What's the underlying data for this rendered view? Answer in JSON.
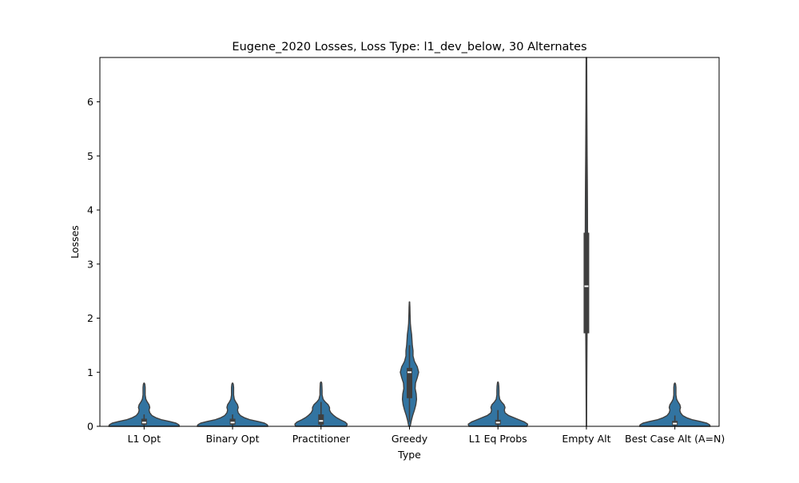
{
  "chart_data": {
    "type": "violin",
    "title": "Eugene_2020 Losses, Loss Type: l1_dev_below, 30 Alternates",
    "xlabel": "Type",
    "ylabel": "Losses",
    "ylim": [
      0,
      6.82
    ],
    "yticks": [
      0,
      1,
      2,
      3,
      4,
      5,
      6
    ],
    "grid": false,
    "violin_color": "#3274a1",
    "edge_color": "#3f3f3f",
    "categories": [
      "L1 Opt",
      "Binary Opt",
      "Practitioner",
      "Greedy",
      "L1 Eq Probs",
      "Empty Alt",
      "Best Case Alt (A=N)"
    ],
    "violins": [
      {
        "category": "L1 Opt",
        "profile": [
          [
            0,
            1.0
          ],
          [
            0.03,
            0.98
          ],
          [
            0.06,
            0.9
          ],
          [
            0.09,
            0.72
          ],
          [
            0.12,
            0.5
          ],
          [
            0.16,
            0.33
          ],
          [
            0.2,
            0.22
          ],
          [
            0.25,
            0.16
          ],
          [
            0.3,
            0.14
          ],
          [
            0.35,
            0.16
          ],
          [
            0.4,
            0.14
          ],
          [
            0.45,
            0.09
          ],
          [
            0.5,
            0.05
          ],
          [
            0.58,
            0.03
          ],
          [
            0.65,
            0.03
          ],
          [
            0.72,
            0.03
          ],
          [
            0.78,
            0.02
          ],
          [
            0.8,
            0.005
          ]
        ],
        "q1": 0.03,
        "median": 0.07,
        "q3": 0.14,
        "whisker_low": 0.0,
        "whisker_high": 0.22
      },
      {
        "category": "Binary Opt",
        "profile": [
          [
            0,
            1.0
          ],
          [
            0.03,
            0.98
          ],
          [
            0.06,
            0.9
          ],
          [
            0.09,
            0.72
          ],
          [
            0.12,
            0.5
          ],
          [
            0.16,
            0.33
          ],
          [
            0.2,
            0.22
          ],
          [
            0.25,
            0.16
          ],
          [
            0.3,
            0.14
          ],
          [
            0.35,
            0.16
          ],
          [
            0.4,
            0.14
          ],
          [
            0.45,
            0.09
          ],
          [
            0.5,
            0.05
          ],
          [
            0.58,
            0.03
          ],
          [
            0.65,
            0.03
          ],
          [
            0.72,
            0.03
          ],
          [
            0.78,
            0.02
          ],
          [
            0.8,
            0.005
          ]
        ],
        "q1": 0.03,
        "median": 0.07,
        "q3": 0.14,
        "whisker_low": 0.0,
        "whisker_high": 0.22
      },
      {
        "category": "Practitioner",
        "profile": [
          [
            0,
            0.72
          ],
          [
            0.04,
            0.74
          ],
          [
            0.08,
            0.68
          ],
          [
            0.12,
            0.55
          ],
          [
            0.16,
            0.44
          ],
          [
            0.2,
            0.36
          ],
          [
            0.25,
            0.28
          ],
          [
            0.3,
            0.24
          ],
          [
            0.35,
            0.24
          ],
          [
            0.4,
            0.2
          ],
          [
            0.45,
            0.12
          ],
          [
            0.5,
            0.06
          ],
          [
            0.58,
            0.03
          ],
          [
            0.66,
            0.03
          ],
          [
            0.74,
            0.025
          ],
          [
            0.8,
            0.02
          ],
          [
            0.82,
            0.005
          ]
        ],
        "q1": 0.03,
        "median": 0.1,
        "q3": 0.22,
        "whisker_low": 0.0,
        "whisker_high": 0.45
      },
      {
        "category": "Greedy",
        "profile": [
          [
            0,
            0.02
          ],
          [
            0.1,
            0.05
          ],
          [
            0.2,
            0.09
          ],
          [
            0.3,
            0.14
          ],
          [
            0.4,
            0.18
          ],
          [
            0.5,
            0.2
          ],
          [
            0.6,
            0.19
          ],
          [
            0.7,
            0.16
          ],
          [
            0.8,
            0.17
          ],
          [
            0.9,
            0.22
          ],
          [
            1.0,
            0.26
          ],
          [
            1.1,
            0.22
          ],
          [
            1.2,
            0.14
          ],
          [
            1.3,
            0.1
          ],
          [
            1.4,
            0.1
          ],
          [
            1.5,
            0.08
          ],
          [
            1.6,
            0.07
          ],
          [
            1.7,
            0.06
          ],
          [
            1.8,
            0.04
          ],
          [
            1.9,
            0.025
          ],
          [
            2.0,
            0.02
          ],
          [
            2.1,
            0.015
          ],
          [
            2.2,
            0.012
          ],
          [
            2.3,
            0.005
          ]
        ],
        "q1": 0.52,
        "median": 1.0,
        "q3": 1.08,
        "whisker_low": 0.08,
        "whisker_high": 1.5
      },
      {
        "category": "L1 Eq Probs",
        "profile": [
          [
            0,
            0.82
          ],
          [
            0.04,
            0.84
          ],
          [
            0.08,
            0.75
          ],
          [
            0.12,
            0.6
          ],
          [
            0.16,
            0.45
          ],
          [
            0.2,
            0.3
          ],
          [
            0.25,
            0.2
          ],
          [
            0.3,
            0.18
          ],
          [
            0.35,
            0.2
          ],
          [
            0.4,
            0.17
          ],
          [
            0.45,
            0.1
          ],
          [
            0.5,
            0.05
          ],
          [
            0.58,
            0.03
          ],
          [
            0.66,
            0.03
          ],
          [
            0.74,
            0.025
          ],
          [
            0.8,
            0.015
          ],
          [
            0.82,
            0.005
          ]
        ],
        "q1": 0.03,
        "median": 0.07,
        "q3": 0.12,
        "whisker_low": 0.0,
        "whisker_high": 0.3
      },
      {
        "category": "Empty Alt",
        "profile": [
          [
            0,
            0.004
          ],
          [
            0.5,
            0.008
          ],
          [
            1.0,
            0.012
          ],
          [
            1.5,
            0.016
          ],
          [
            2.0,
            0.022
          ],
          [
            2.5,
            0.028
          ],
          [
            3.0,
            0.03
          ],
          [
            3.5,
            0.032
          ],
          [
            4.0,
            0.03
          ],
          [
            4.5,
            0.026
          ],
          [
            5.0,
            0.02
          ],
          [
            5.5,
            0.016
          ],
          [
            6.0,
            0.012
          ],
          [
            6.5,
            0.01
          ],
          [
            6.82,
            0.008
          ]
        ],
        "q1": 1.72,
        "median": 2.59,
        "q3": 3.58,
        "whisker_low": 0.0,
        "whisker_high": 6.82
      },
      {
        "category": "Best Case Alt (A=N)",
        "profile": [
          [
            0,
            1.0
          ],
          [
            0.03,
            0.98
          ],
          [
            0.06,
            0.9
          ],
          [
            0.09,
            0.72
          ],
          [
            0.12,
            0.5
          ],
          [
            0.16,
            0.33
          ],
          [
            0.2,
            0.22
          ],
          [
            0.25,
            0.16
          ],
          [
            0.3,
            0.14
          ],
          [
            0.35,
            0.16
          ],
          [
            0.4,
            0.14
          ],
          [
            0.45,
            0.09
          ],
          [
            0.5,
            0.05
          ],
          [
            0.58,
            0.03
          ],
          [
            0.65,
            0.03
          ],
          [
            0.72,
            0.03
          ],
          [
            0.78,
            0.02
          ],
          [
            0.8,
            0.005
          ]
        ],
        "q1": 0.02,
        "median": 0.05,
        "q3": 0.1,
        "whisker_low": 0.0,
        "whisker_high": 0.2
      }
    ]
  }
}
